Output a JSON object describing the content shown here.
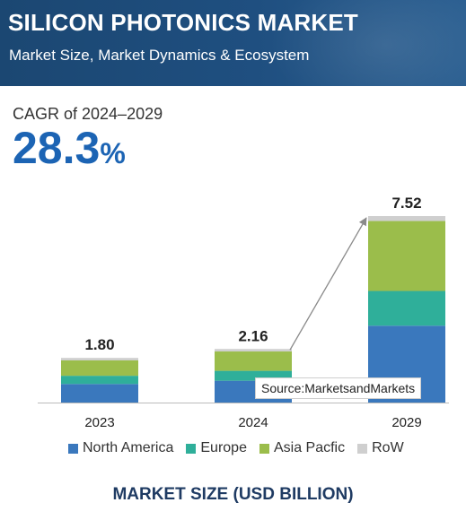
{
  "header": {
    "title": "SILICON PHOTONICS MARKET",
    "subtitle": "Market Size, Market Dynamics & Ecosystem"
  },
  "cagr": {
    "label": "CAGR of 2024–2029",
    "value": "28.3",
    "unit": "%"
  },
  "source": "Source:MarketsandMarkets",
  "footer": "MARKET SIZE (USD BILLION)",
  "chart_data": {
    "type": "bar",
    "stacked": true,
    "categories": [
      "2023",
      "2024",
      "2029"
    ],
    "totals": [
      "1.80",
      "2.16",
      "7.52"
    ],
    "series": [
      {
        "name": "North America",
        "color": "#3a78bd",
        "values": [
          0.75,
          0.88,
          3.1
        ]
      },
      {
        "name": "Europe",
        "color": "#2faf9a",
        "values": [
          0.33,
          0.4,
          1.4
        ]
      },
      {
        "name": "Asia Pacfic",
        "color": "#9bbd4b",
        "values": [
          0.62,
          0.78,
          2.82
        ]
      },
      {
        "name": "RoW",
        "color": "#cfcfcf",
        "values": [
          0.1,
          0.1,
          0.2
        ]
      }
    ],
    "ylim": [
      0,
      7.52
    ],
    "xlabel": "MARKET SIZE (USD BILLION)",
    "ylabel": "",
    "legend_position": "bottom",
    "grid": false
  }
}
